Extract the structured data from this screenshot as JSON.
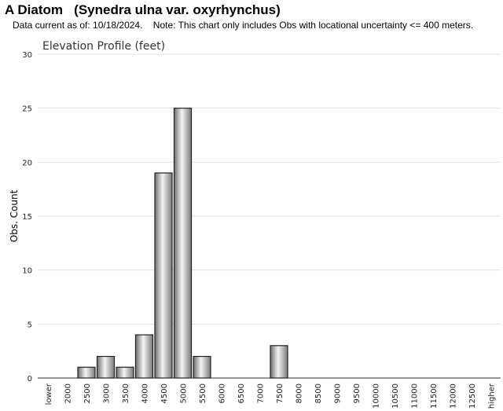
{
  "header": {
    "title": "A Diatom   (Synedra ulna var. oxyrhynchus)",
    "subtitle": "Data current as of: 10/18/2024.    Note: This chart only includes Obs with locational uncertainty <= 400 meters."
  },
  "chart_data": {
    "type": "bar",
    "title": "Elevation Profile (feet)",
    "xlabel": "",
    "ylabel": "Obs. Count",
    "ylim": [
      0,
      30
    ],
    "yticks": [
      0,
      5,
      10,
      15,
      20,
      25,
      30
    ],
    "grid": true,
    "categories": [
      "lower",
      "2000",
      "2500",
      "3000",
      "3500",
      "4000",
      "4500",
      "5000",
      "5500",
      "6000",
      "6500",
      "7000",
      "7500",
      "8000",
      "8500",
      "9000",
      "9500",
      "10000",
      "10500",
      "11000",
      "11500",
      "12000",
      "12500",
      "higher"
    ],
    "values": [
      0,
      0,
      1,
      2,
      1,
      4,
      19,
      25,
      2,
      0,
      0,
      0,
      3,
      0,
      0,
      0,
      0,
      0,
      0,
      0,
      0,
      0,
      0,
      0
    ]
  }
}
